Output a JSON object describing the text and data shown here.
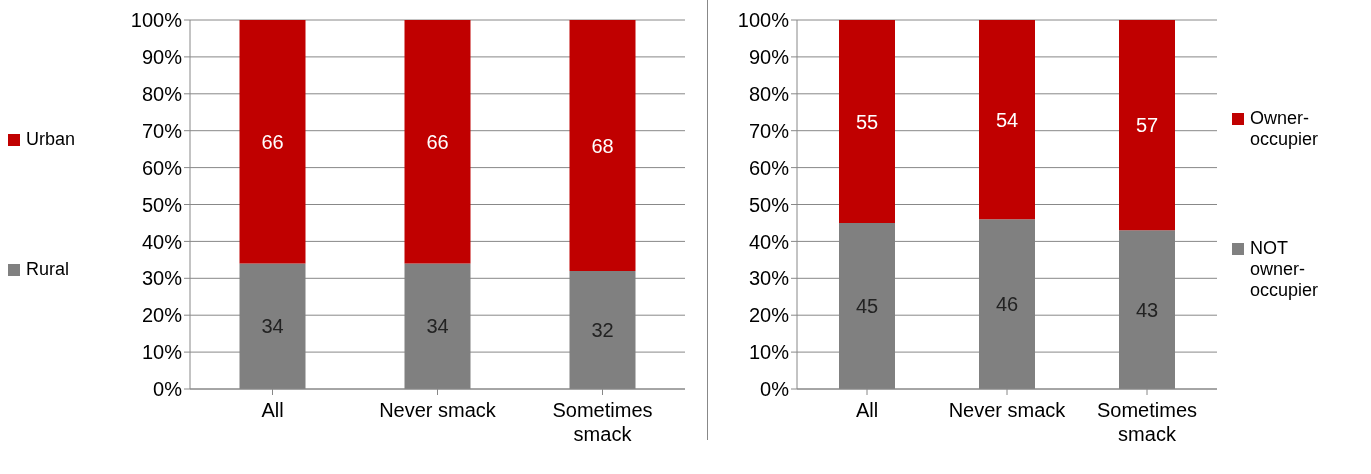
{
  "chart_data": [
    {
      "type": "bar",
      "stacked": true,
      "categories": [
        "All",
        "Never smack",
        "Sometimes smack"
      ],
      "series": [
        {
          "name": "Rural",
          "color": "#808080",
          "values": [
            34,
            34,
            32
          ]
        },
        {
          "name": "Urban",
          "color": "#c00000",
          "values": [
            66,
            66,
            68
          ]
        }
      ],
      "ylim": [
        0,
        100
      ],
      "yticks": [
        {
          "value": 0,
          "label": "0%"
        },
        {
          "value": 10,
          "label": "10%"
        },
        {
          "value": 20,
          "label": "20%"
        },
        {
          "value": 30,
          "label": "30%"
        },
        {
          "value": 40,
          "label": "40%"
        },
        {
          "value": 50,
          "label": "50%"
        },
        {
          "value": 60,
          "label": "60%"
        },
        {
          "value": 70,
          "label": "70%"
        },
        {
          "value": 80,
          "label": "80%"
        },
        {
          "value": 90,
          "label": "90%"
        },
        {
          "value": 100,
          "label": "100%"
        }
      ],
      "grid": "y",
      "legend": "left",
      "data_labels": true
    },
    {
      "type": "bar",
      "stacked": true,
      "categories": [
        "All",
        "Never smack",
        "Sometimes smack"
      ],
      "series": [
        {
          "name": "NOT owner-occupier",
          "color": "#808080",
          "values": [
            45,
            46,
            43
          ]
        },
        {
          "name": "Owner-occupier",
          "color": "#c00000",
          "values": [
            55,
            54,
            57
          ]
        }
      ],
      "ylim": [
        0,
        100
      ],
      "yticks": [
        {
          "value": 0,
          "label": "0%"
        },
        {
          "value": 10,
          "label": "10%"
        },
        {
          "value": 20,
          "label": "20%"
        },
        {
          "value": 30,
          "label": "30%"
        },
        {
          "value": 40,
          "label": "40%"
        },
        {
          "value": 50,
          "label": "50%"
        },
        {
          "value": 60,
          "label": "60%"
        },
        {
          "value": 70,
          "label": "70%"
        },
        {
          "value": 80,
          "label": "80%"
        },
        {
          "value": 90,
          "label": "90%"
        },
        {
          "value": 100,
          "label": "100%"
        }
      ],
      "grid": "y",
      "legend": "right",
      "data_labels": true
    }
  ]
}
